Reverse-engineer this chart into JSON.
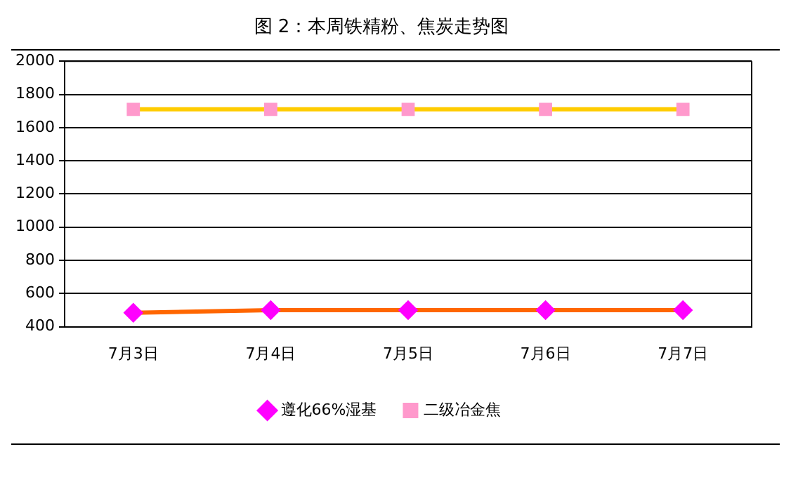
{
  "chart_data": {
    "type": "line",
    "title": "图 2：本周铁精粉、焦炭走势图",
    "categories": [
      "7月3日",
      "7月4日",
      "7月5日",
      "7月6日",
      "7月7日"
    ],
    "series": [
      {
        "name": "遵化66%湿基",
        "color": "#ff6600",
        "colors": [
          "#ff00ff",
          "#ff00ff",
          "#ff00ff",
          "#ff00ff",
          "#ff00ff"
        ],
        "marker": "diamond",
        "values": [
          484,
          500,
          500,
          500,
          500
        ]
      },
      {
        "name": "二级冶金焦",
        "color": "#ffcc00",
        "colors": [
          "#ff99cc",
          "#ff99cc",
          "#ff99cc",
          "#ff99cc",
          "#ff99cc"
        ],
        "marker": "square",
        "values": [
          1710,
          1710,
          1710,
          1710,
          1710
        ]
      }
    ],
    "ylim": [
      400,
      2000
    ],
    "yticks": [
      400,
      600,
      800,
      1000,
      1200,
      1400,
      1600,
      1800,
      2000
    ],
    "grid": "y",
    "legend": "bottom"
  }
}
